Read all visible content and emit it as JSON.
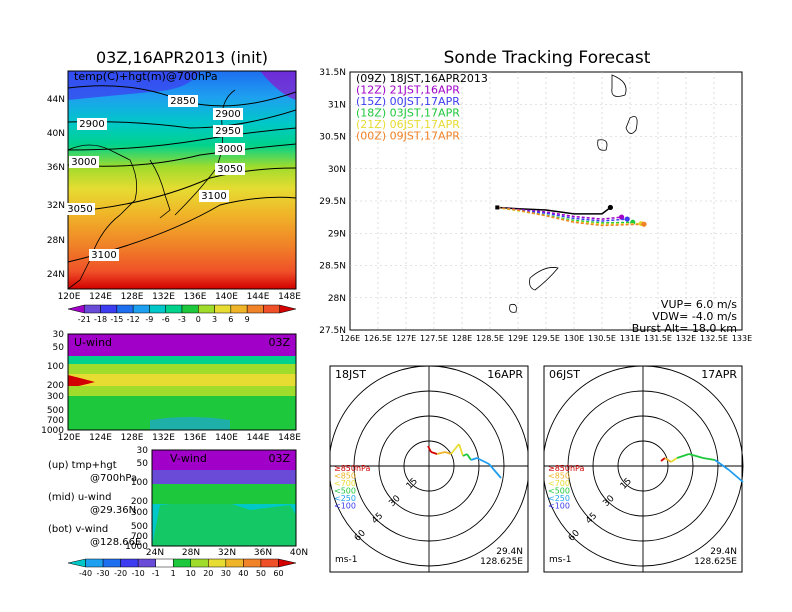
{
  "left": {
    "title": "03Z,16APR2013 (init)",
    "map": {
      "field_label": "temp(C)+hgt(m)@700hPa",
      "lat_ticks": [
        "44N",
        "40N",
        "36N",
        "32N",
        "28N",
        "24N"
      ],
      "lon_ticks": [
        "120E",
        "124E",
        "128E",
        "132E",
        "136E",
        "140E",
        "144E",
        "148E"
      ],
      "contour_labels": [
        "2850",
        "2900",
        "2900",
        "2950",
        "3000",
        "3000",
        "3050",
        "3050",
        "3100",
        "3100"
      ]
    },
    "temp_colorbar": {
      "labels": [
        "-21",
        "-18",
        "-15",
        "-12",
        "-9",
        "-6",
        "-3",
        "0",
        "3",
        "6",
        "9"
      ],
      "colors": [
        "#a000c8",
        "#6a4bd8",
        "#3c3cf0",
        "#1e6ef0",
        "#1ea0f0",
        "#00c8c8",
        "#00d28c",
        "#1ec83c",
        "#a0dc2c",
        "#e6dc32",
        "#f0b428",
        "#f08228",
        "#f05028",
        "#d20000"
      ]
    },
    "uwind": {
      "label": "U-wind",
      "time": "03Z",
      "p_ticks": [
        "30",
        "50",
        "100",
        "200",
        "300",
        "500",
        "700",
        "1000"
      ],
      "lon_ticks": [
        "120E",
        "124E",
        "128E",
        "132E",
        "136E",
        "140E",
        "144E",
        "148E"
      ]
    },
    "vwind": {
      "label": "V-wind",
      "time": "03Z",
      "p_ticks": [
        "30",
        "50",
        "100",
        "200",
        "300",
        "500",
        "700",
        "1000"
      ],
      "lat_ticks": [
        "24N",
        "28N",
        "32N",
        "36N",
        "40N"
      ]
    },
    "wind_colorbar": {
      "labels": [
        "-40",
        "-30",
        "-20",
        "-10",
        "-1",
        "1",
        "10",
        "20",
        "30",
        "40",
        "50",
        "60"
      ],
      "colors": [
        "#00c8c8",
        "#1ea0f0",
        "#1e6ef0",
        "#3c3cf0",
        "#6a4bd8",
        "#ffffff",
        "#1ec83c",
        "#a0dc2c",
        "#e6dc32",
        "#f0b428",
        "#f08228",
        "#f05028",
        "#d20000"
      ]
    },
    "legend": {
      "up": "(up) tmp+hgt",
      "up2": "@700hPa",
      "mid": "(mid) u-wind",
      "mid2": "@29.36N",
      "bot": "(bot) v-wind",
      "bot2": "@128.66E"
    }
  },
  "right": {
    "title": "Sonde Tracking Forecast",
    "lat_ticks": [
      "31.5N",
      "31N",
      "30.5N",
      "30N",
      "29.5N",
      "29N",
      "28.5N",
      "28N",
      "27.5N"
    ],
    "lon_ticks": [
      "126E",
      "126.5E",
      "127E",
      "127.5E",
      "128E",
      "128.5E",
      "129E",
      "129.5E",
      "130E",
      "130.5E",
      "131E",
      "131.5E",
      "132E",
      "132.5E",
      "133E"
    ],
    "runs": [
      {
        "label": "(09Z) 18JST,16APR2013",
        "color": "#000000"
      },
      {
        "label": "(12Z) 21JST,16APR",
        "color": "#a000c8"
      },
      {
        "label": "(15Z) 00JST,17APR",
        "color": "#3c3cf0"
      },
      {
        "label": "(18Z) 03JST,17APR",
        "color": "#1ec83c"
      },
      {
        "label": "(21Z) 06JST,17APR",
        "color": "#e6dc32"
      },
      {
        "label": "(00Z) 09JST,17APR",
        "color": "#f08228"
      }
    ],
    "params": {
      "vup": "VUP= 6.0 m/s",
      "vdw": "VDW= -4.0 m/s",
      "burst": "Burst Alt= 18.0 km"
    }
  },
  "hodographs": [
    {
      "time": "18JST",
      "date": "16APR",
      "lat": "29.4N",
      "lon": "128.625E",
      "unit": "ms-1"
    },
    {
      "time": "06JST",
      "date": "17APR",
      "lat": "29.4N",
      "lon": "128.625E",
      "unit": "ms-1"
    }
  ],
  "hodo_ring_labels": [
    "15",
    "30",
    "45",
    "60"
  ],
  "hodo_legend": [
    {
      "label": "≥850hPa",
      "color": "#d20000"
    },
    {
      "label": "<850",
      "color": "#f0b428"
    },
    {
      "label": "<700",
      "color": "#e6dc32"
    },
    {
      "label": "<500",
      "color": "#1ec83c"
    },
    {
      "label": "<250",
      "color": "#1e9ef0"
    },
    {
      "label": "<100",
      "color": "#3c3cf0"
    }
  ],
  "chart_data": [
    {
      "type": "heatmap",
      "title": "03Z,16APR2013 (init)",
      "field": "temp(C)+hgt(m)@700hPa",
      "xlim": [
        120,
        149
      ],
      "ylim": [
        22,
        47
      ],
      "contours_m": [
        2850,
        2900,
        2950,
        3000,
        3050,
        3100
      ]
    },
    {
      "type": "heatmap",
      "title": "U-wind 03Z",
      "ylabel_ticks": [
        30,
        50,
        100,
        200,
        300,
        500,
        700,
        1000
      ]
    },
    {
      "type": "heatmap",
      "title": "V-wind 03Z",
      "ylabel_ticks": [
        30,
        50,
        100,
        200,
        300,
        500,
        700,
        1000
      ]
    },
    {
      "type": "line",
      "title": "Sonde Tracking Forecast",
      "xlim": [
        126,
        133
      ],
      "ylim": [
        27.5,
        31.5
      ],
      "launch": [
        128.63,
        29.4
      ],
      "series": [
        {
          "name": "(09Z) 18JST,16APR2013",
          "x": [
            128.63,
            129.0,
            129.5,
            130.0,
            130.5,
            130.65
          ],
          "y": [
            29.4,
            29.38,
            29.36,
            29.3,
            29.3,
            29.4
          ]
        },
        {
          "name": "(12Z) 21JST,16APR",
          "x": [
            128.63,
            129.0,
            129.5,
            130.0,
            130.5,
            130.85
          ],
          "y": [
            29.4,
            29.37,
            29.33,
            29.26,
            29.22,
            29.25
          ]
        },
        {
          "name": "(15Z) 00JST,17APR",
          "x": [
            128.63,
            129.0,
            129.5,
            130.0,
            130.5,
            130.95
          ],
          "y": [
            29.4,
            29.36,
            29.31,
            29.23,
            29.19,
            29.22
          ]
        },
        {
          "name": "(18Z) 03JST,17APR",
          "x": [
            128.63,
            129.0,
            129.5,
            130.0,
            130.5,
            131.05
          ],
          "y": [
            29.4,
            29.35,
            29.28,
            29.2,
            29.16,
            29.17
          ]
        },
        {
          "name": "(21Z) 06JST,17APR",
          "x": [
            128.63,
            129.0,
            129.5,
            130.0,
            130.5,
            131.2
          ],
          "y": [
            29.4,
            29.35,
            29.27,
            29.18,
            29.14,
            29.15
          ]
        },
        {
          "name": "(00Z) 09JST,17APR",
          "x": [
            128.63,
            129.0,
            129.5,
            130.0,
            130.5,
            131.25
          ],
          "y": [
            29.4,
            29.36,
            29.27,
            29.17,
            29.12,
            29.14
          ]
        }
      ]
    }
  ]
}
